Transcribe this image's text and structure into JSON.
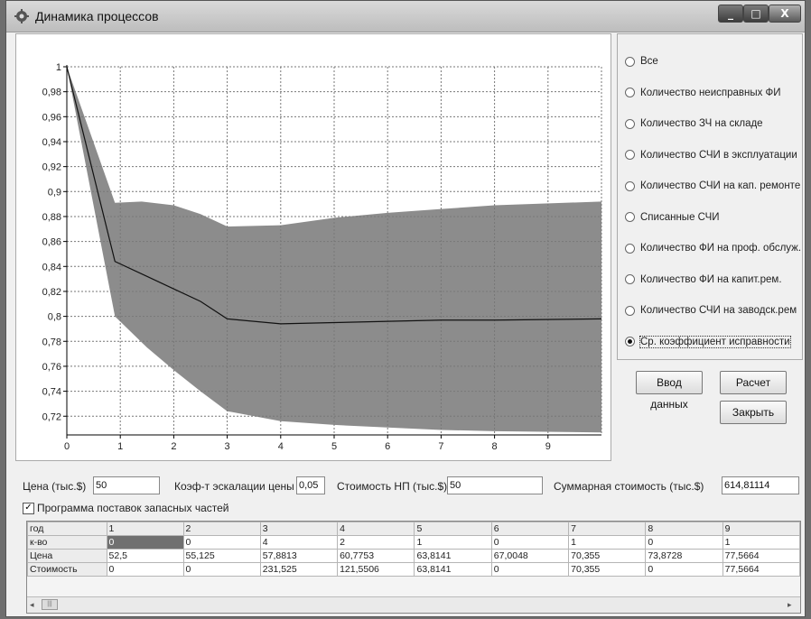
{
  "window": {
    "title": "Динамика процессов",
    "icon": "gear-icon"
  },
  "radio_options": [
    {
      "label": "Все",
      "selected": false
    },
    {
      "label": "Количество неисправных ФИ",
      "selected": false
    },
    {
      "label": "Количество ЗЧ на складе",
      "selected": false
    },
    {
      "label": "Количество СЧИ в эксплуатации",
      "selected": false
    },
    {
      "label": "Количество СЧИ на  кап. ремонте",
      "selected": false
    },
    {
      "label": "Списанные  СЧИ",
      "selected": false
    },
    {
      "label": "Количество ФИ на проф. обслуж.",
      "selected": false
    },
    {
      "label": "Количество ФИ на капит.рем.",
      "selected": false
    },
    {
      "label": "Количество СЧИ на заводск.рем",
      "selected": false
    },
    {
      "label": "Ср. коэффициент  исправности",
      "selected": true
    }
  ],
  "buttons": {
    "input_data": "Ввод данных",
    "calculate": "Расчет",
    "close": "Закрыть"
  },
  "fields": {
    "price_label": "Цена (тыс.$)",
    "price_value": "50",
    "escalation_label": "Коэф-т эскалации цены",
    "escalation_value": "0,05",
    "np_cost_label": "Стоимость НП (тыс.$)",
    "np_cost_value": "50",
    "total_cost_label": "Суммарная стоимость (тыс.$)",
    "total_cost_value": "614,81114"
  },
  "checkbox": {
    "label": "Программа поставок запасных частей",
    "checked": true
  },
  "table": {
    "rows": [
      {
        "header": "год",
        "cells": [
          "1",
          "2",
          "3",
          "4",
          "5",
          "6",
          "7",
          "8",
          "9"
        ]
      },
      {
        "header": "к-во",
        "cells": [
          "0",
          "0",
          "4",
          "2",
          "1",
          "0",
          "1",
          "0",
          "1"
        ]
      },
      {
        "header": "Цена",
        "cells": [
          "52,5",
          "55,125",
          "57,8813",
          "60,7753",
          "63,8141",
          "67,0048",
          "70,355",
          "73,8728",
          "77,5664"
        ]
      },
      {
        "header": "Стоимость",
        "cells": [
          "0",
          "0",
          "231,525",
          "121,5506",
          "63,8141",
          "0",
          "70,355",
          "0",
          "77,5664"
        ]
      }
    ]
  },
  "chart_data": {
    "type": "area",
    "x_ticks": [
      "0",
      "1",
      "2",
      "3",
      "4",
      "5",
      "6",
      "7",
      "8",
      "9"
    ],
    "y_ticks": [
      "1",
      "0,98",
      "0,96",
      "0,94",
      "0,92",
      "0,9",
      "0,88",
      "0,86",
      "0,84",
      "0,82",
      "0,8",
      "0,78",
      "0,76",
      "0,74",
      "0,72"
    ],
    "xlim": [
      0,
      10
    ],
    "ylim": [
      0.705,
      1
    ],
    "grid": true,
    "series": [
      {
        "role": "upper",
        "x": [
          0,
          0.9,
          1.4,
          2,
          2.5,
          3,
          4,
          5,
          6,
          7,
          8,
          10
        ],
        "y": [
          1,
          0.891,
          0.892,
          0.889,
          0.882,
          0.872,
          0.873,
          0.879,
          0.883,
          0.886,
          0.889,
          0.892
        ]
      },
      {
        "role": "mean",
        "x": [
          0,
          0.9,
          1.5,
          2,
          2.5,
          3,
          4,
          5,
          6,
          7,
          8,
          10
        ],
        "y": [
          1,
          0.844,
          0.832,
          0.822,
          0.812,
          0.798,
          0.794,
          0.795,
          0.796,
          0.797,
          0.797,
          0.798
        ]
      },
      {
        "role": "lower",
        "x": [
          0,
          0.9,
          1.5,
          2,
          2.5,
          3,
          4,
          5,
          6,
          7,
          8,
          10
        ],
        "y": [
          1,
          0.8,
          0.775,
          0.757,
          0.74,
          0.724,
          0.716,
          0.713,
          0.711,
          0.709,
          0.708,
          0.707
        ]
      }
    ],
    "colors": {
      "band": "#8c8c8c",
      "mean_line": "#111111"
    }
  }
}
